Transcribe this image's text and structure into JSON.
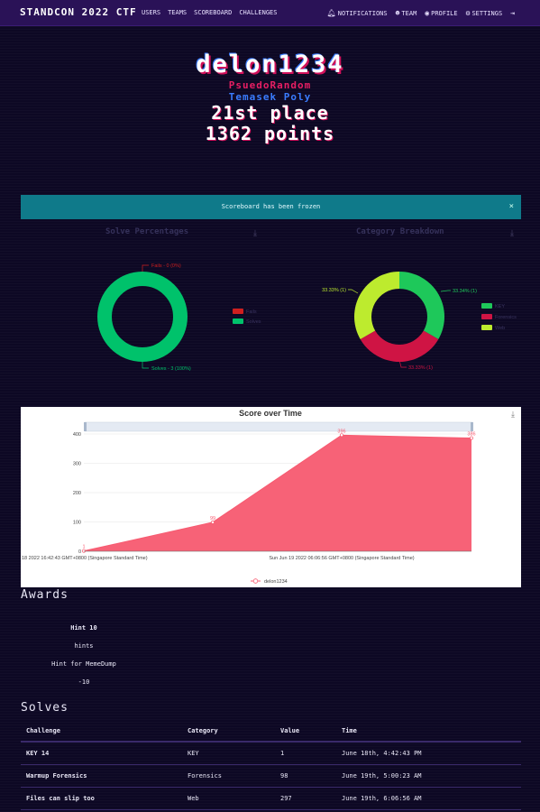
{
  "nav": {
    "brand": "STANDCON 2022 CTF",
    "links": [
      "USERS",
      "TEAMS",
      "SCOREBOARD",
      "CHALLENGES"
    ],
    "right": [
      {
        "label": "NOTIFICATIONS",
        "icon": "bell-icon"
      },
      {
        "label": "TEAM",
        "icon": "users-icon"
      },
      {
        "label": "PROFILE",
        "icon": "user-circle-icon"
      },
      {
        "label": "SETTINGS",
        "icon": "cogs-icon"
      }
    ],
    "logout_icon": "logout-icon"
  },
  "profile": {
    "username": "delon1234",
    "affiliation": "PsuedoRandom",
    "team": "Temasek Poly",
    "place": "21st place",
    "points": "1362 points"
  },
  "alert": {
    "message": "Scoreboard has been frozen",
    "close": "×"
  },
  "solve_percentages": {
    "title": "Solve Percentages",
    "fails_label": "Fails - 0 (0%)",
    "solves_label": "Solves - 3 (100%)",
    "legend": [
      "Fails",
      "Solves"
    ],
    "colors": {
      "fails": "#cf1f1f",
      "solves": "#00c26b"
    }
  },
  "category_breakdown": {
    "title": "Category Breakdown",
    "labels": [
      "33.34% (1)",
      "33.33% (1)",
      "33.33% (1)"
    ],
    "legend": [
      "KEY",
      "Forensics",
      "Web"
    ],
    "colors": {
      "KEY": "#1ec85a",
      "Forensics": "#cf1444",
      "Web": "#bdeb2e"
    }
  },
  "chart_data": {
    "type": "area",
    "title": "Score over Time",
    "x": [
      "Sat Jun 18 2022 16:42:43 GMT+0800 (Singapore Standard Time)",
      "",
      "Sun Jun 19 2022 06:06:56 GMT+0800 (Singapore Standard Time)",
      ""
    ],
    "x_tick_labels": [
      "18 2022 16:42:43 GMT+0800 (Singapore Standard Time)",
      "Sun Jun 19 2022 06:06:56 GMT+0800 (Singapore Standard Time)"
    ],
    "series": [
      {
        "name": "delon1234",
        "values": [
          1,
          99,
          396,
          386
        ]
      }
    ],
    "ylim": [
      0,
      400
    ],
    "yticks": [
      0,
      100,
      200,
      300,
      400
    ],
    "legend": "bottom",
    "color": "#f75a70"
  },
  "awards": {
    "heading": "Awards",
    "items": [
      {
        "name": "Hint 10",
        "category": "hints",
        "description": "Hint for MemeDump",
        "value": "-10"
      }
    ]
  },
  "solves": {
    "heading": "Solves",
    "columns": [
      "Challenge",
      "Category",
      "Value",
      "Time"
    ],
    "rows": [
      {
        "challenge": "KEY 14",
        "category": "KEY",
        "value": "1",
        "time": "June 18th, 4:42:43 PM"
      },
      {
        "challenge": "Warmup Forensics",
        "category": "Forensics",
        "value": "98",
        "time": "June 19th, 5:00:23 AM"
      },
      {
        "challenge": "Files can slip too",
        "category": "Web",
        "value": "297",
        "time": "June 19th, 6:06:56 AM"
      }
    ]
  }
}
